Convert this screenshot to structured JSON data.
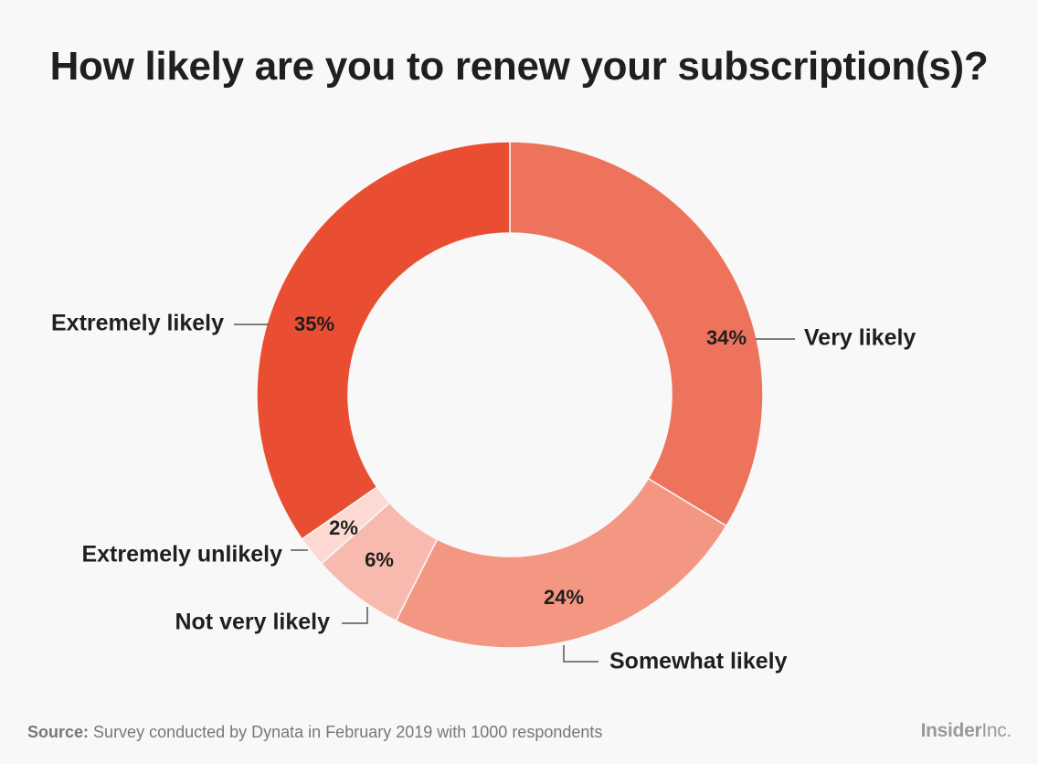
{
  "chart_data": {
    "type": "pie",
    "donut": true,
    "title": "How likely are you to renew your subscription(s)?",
    "slices": [
      {
        "label": "Very likely",
        "value": 34,
        "value_label": "34%",
        "color": "#ee735c"
      },
      {
        "label": "Somewhat likely",
        "value": 24,
        "value_label": "24%",
        "color": "#f39783"
      },
      {
        "label": "Not very likely",
        "value": 6,
        "value_label": "6%",
        "color": "#f8baae"
      },
      {
        "label": "Extremely unlikely",
        "value": 2,
        "value_label": "2%",
        "color": "#fcdad3"
      },
      {
        "label": "Extremely likely",
        "value": 35,
        "value_label": "35%",
        "color": "#e94e32"
      }
    ]
  },
  "footer": {
    "source_label": "Source:",
    "source_text": "Survey conducted by Dynata in February 2019 with 1000 respondents"
  },
  "brand": {
    "bold": "Insider",
    "light": "Inc."
  }
}
